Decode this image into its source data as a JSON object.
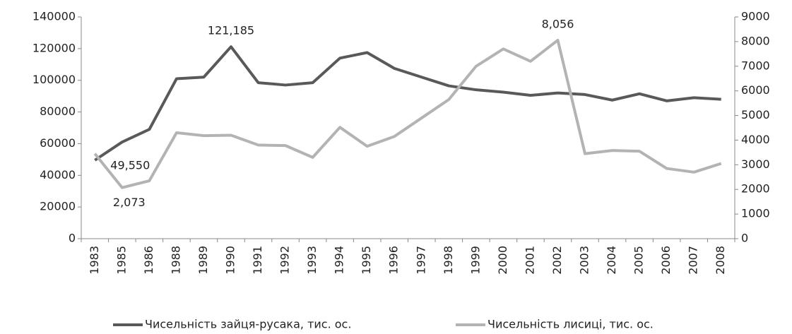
{
  "chart_data": {
    "type": "line",
    "categories": [
      "1983",
      "1985",
      "1986",
      "1988",
      "1989",
      "1990",
      "1991",
      "1992",
      "1993",
      "1994",
      "1995",
      "1996",
      "1997",
      "1998",
      "1999",
      "2000",
      "2001",
      "2002",
      "2003",
      "2004",
      "2005",
      "2006",
      "2007",
      "2008"
    ],
    "series": [
      {
        "name": "Чисельність зайця-русака, тис. ос.",
        "color": "#595959",
        "values": [
          49550,
          61000,
          69000,
          101000,
          102000,
          121185,
          98500,
          97000,
          98500,
          114000,
          117500,
          107500,
          102000,
          96500,
          94000,
          92500,
          90500,
          92000,
          91000,
          87500,
          91500,
          87000,
          89000,
          88000
        ],
        "value_labels": [
          "49,550",
          null,
          null,
          null,
          null,
          "121,185",
          null,
          null,
          null,
          null,
          null,
          null,
          null,
          null,
          null,
          null,
          null,
          null,
          null,
          null,
          null,
          null,
          null,
          null
        ]
      },
      {
        "name": "Чисельність лисиці, тис. ос.",
        "color": "#b3b3b3",
        "axis": "y2",
        "values": [
          3450,
          2073,
          2350,
          4300,
          4180,
          4200,
          3800,
          3780,
          3300,
          4520,
          3750,
          4150,
          4900,
          5650,
          7000,
          7700,
          7200,
          8056,
          3450,
          3580,
          3550,
          2850,
          2700,
          3050
        ],
        "value_labels": [
          null,
          "2,073",
          null,
          null,
          null,
          null,
          null,
          null,
          null,
          null,
          null,
          null,
          null,
          null,
          null,
          null,
          null,
          "8,056",
          null,
          null,
          null,
          null,
          null,
          null
        ]
      }
    ],
    "ylim": [
      0,
      140000
    ],
    "yticks": [
      0,
      20000,
      40000,
      60000,
      80000,
      100000,
      120000,
      140000
    ],
    "y2lim": [
      0,
      9000
    ],
    "y2ticks": [
      0,
      1000,
      2000,
      3000,
      4000,
      5000,
      6000,
      7000,
      8000,
      9000
    ],
    "legend": "bottom"
  }
}
